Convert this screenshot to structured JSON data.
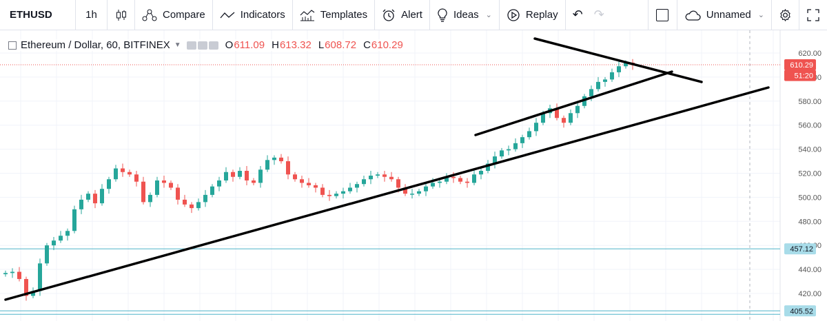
{
  "toolbar": {
    "symbol": "ETHUSD",
    "interval": "1h",
    "compare": "Compare",
    "indicators": "Indicators",
    "templates": "Templates",
    "alert": "Alert",
    "ideas": "Ideas",
    "replay": "Replay",
    "layout_name": "Unnamed"
  },
  "legend": {
    "title": "Ethereum / Dollar, 60, BITFINEX",
    "open_label": "O",
    "open": "611.09",
    "high_label": "H",
    "high": "613.32",
    "low_label": "L",
    "low": "608.72",
    "close_label": "C",
    "close": "610.29"
  },
  "axis": {
    "ticks": [
      "620.00",
      "600.00",
      "580.00",
      "560.00",
      "540.00",
      "520.00",
      "500.00",
      "480.00",
      "460.00",
      "440.00",
      "420.00"
    ],
    "last_price": "610.29",
    "countdown": "51:20",
    "level_1": "457.12",
    "level_2": "405.52"
  },
  "colors": {
    "up": "#26a69a",
    "down": "#ef5350",
    "accent": "#2962ff",
    "level_line": "#4fb3c9"
  },
  "chart_data": {
    "type": "line",
    "title": "Ethereum / Dollar, 60, BITFINEX",
    "ylim": [
      405,
      628
    ],
    "x": [
      0,
      10,
      20,
      30,
      40,
      50,
      60,
      70,
      80,
      90,
      100,
      110,
      120,
      130,
      140,
      150,
      160,
      170,
      180,
      190,
      200,
      210,
      220,
      230,
      240,
      250,
      260,
      270,
      280,
      290,
      300,
      310,
      320,
      330,
      340,
      350,
      360,
      370,
      380,
      390,
      400,
      410,
      420,
      430,
      440,
      450,
      460,
      470,
      480,
      490,
      500,
      510,
      520,
      530,
      540,
      550,
      560,
      570,
      580,
      590,
      600,
      610,
      620,
      630,
      640,
      650,
      660,
      670,
      680,
      690,
      700,
      710,
      720,
      730,
      740,
      750,
      760,
      770,
      780,
      790,
      800,
      810,
      820,
      830,
      840,
      850,
      860,
      870,
      880,
      890,
      900,
      910
    ],
    "series": [
      {
        "values": [
          437,
          438,
          432,
          418,
          422,
          445,
          460,
          464,
          468,
          472,
          490,
          498,
          503,
          495,
          507,
          515,
          524,
          521,
          519,
          513,
          496,
          502,
          514,
          512,
          508,
          498,
          494,
          491,
          496,
          502,
          509,
          514,
          521,
          517,
          522,
          514,
          512,
          523,
          531,
          533,
          530,
          519,
          515,
          512,
          510,
          508,
          502,
          501,
          503,
          505,
          508,
          511,
          515,
          518,
          519,
          517,
          515,
          508,
          503,
          503,
          505,
          509,
          512,
          513,
          517,
          516,
          513,
          512,
          519,
          522,
          528,
          534,
          539,
          540,
          545,
          550,
          555,
          562,
          570,
          574,
          566,
          562,
          570,
          576,
          584,
          590,
          596,
          598,
          604,
          609,
          612,
          610
        ]
      }
    ]
  }
}
